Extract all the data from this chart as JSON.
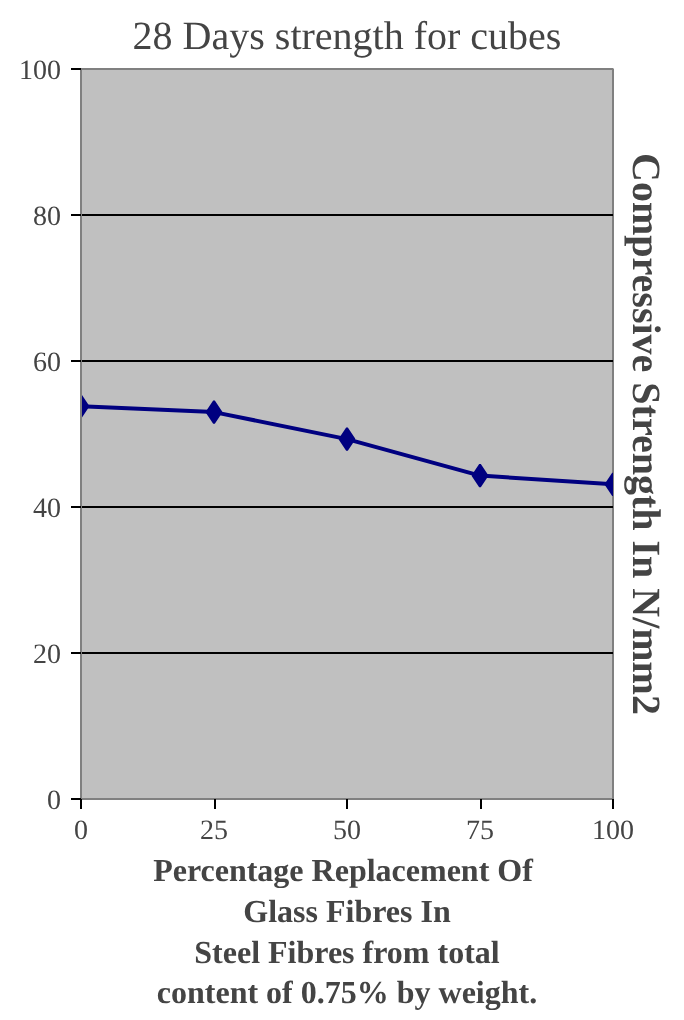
{
  "chart_data": {
    "type": "line",
    "title": "28 Days strength for cubes",
    "xlabel": "Percentage  Replacement Of\nGlass Fibres In\nSteel Fibres from total\ncontent of 0.75% by weight.",
    "ylabel": "Compressive Strength In N/mm2",
    "x": [
      0,
      25,
      50,
      75,
      100
    ],
    "series": [
      {
        "color": "#000080",
        "values": [
          53.8,
          53.0,
          49.3,
          44.3,
          43.1
        ]
      }
    ],
    "xlim": [
      0,
      100
    ],
    "xticks": [
      0,
      25,
      50,
      75,
      100
    ],
    "ylim": [
      0,
      100
    ],
    "yticks": [
      0,
      20,
      40,
      60,
      80,
      100
    ],
    "grid": "y",
    "marker": "diamond",
    "line_style": "solid"
  }
}
